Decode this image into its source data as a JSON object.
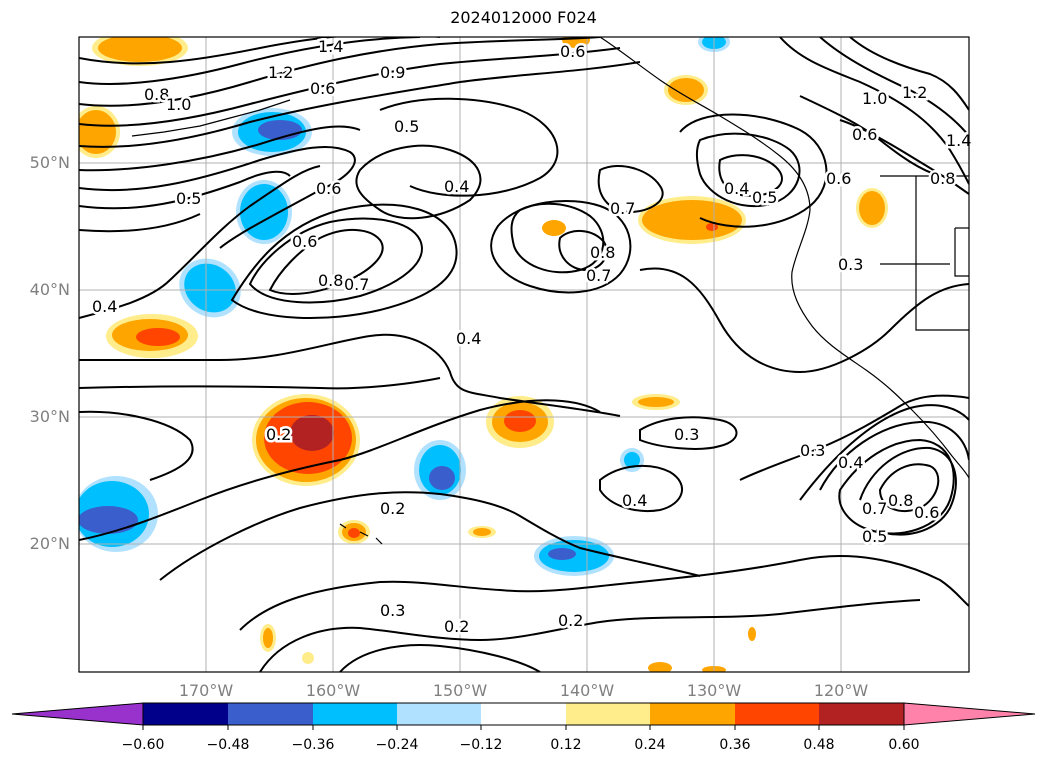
{
  "title": "2024012000 F024",
  "lat_labels": [
    "50°N",
    "40°N",
    "30°N",
    "20°N"
  ],
  "lon_labels": [
    "170°W",
    "160°W",
    "150°W",
    "140°W",
    "130°W",
    "120°W"
  ],
  "contour_labels": [
    "1.2",
    "1.4",
    "0.8",
    "1.0",
    "0.6",
    "0.9",
    "0.6",
    "0.5",
    "0.6",
    "0.5",
    "0.4",
    "0.6",
    "0.8",
    "0.7",
    "0.4",
    "0.4",
    "0.8",
    "0.7",
    "0.7",
    "0.4",
    "0.5",
    "0.6",
    "1.0",
    "1.2",
    "0.6",
    "1.4",
    "0.8",
    "0.3",
    "0.2",
    "0.2",
    "0.3",
    "0.2",
    "0.3",
    "0.2",
    "0.4",
    "0.3",
    "0.4",
    "0.7",
    "0.8",
    "0.6",
    "0.5"
  ],
  "colorbar": {
    "ticks": [
      "−0.60",
      "−0.48",
      "−0.36",
      "−0.24",
      "−0.12",
      "0.12",
      "0.24",
      "0.36",
      "0.48",
      "0.60"
    ],
    "colors": [
      "#9932cc",
      "#00008b",
      "#3a5fcd",
      "#00bfff",
      "#b0e2ff",
      "#ffffff",
      "#ffec8b",
      "#ffa500",
      "#ff4500",
      "#b22222",
      "#ff82ab"
    ]
  },
  "fill_colors": {
    "orange": "#ffa500",
    "yellow": "#ffec8b",
    "red": "#ff4500",
    "darkred": "#b22222",
    "sky": "#00bfff",
    "lightblue": "#b0e2ff",
    "royal": "#3a5fcd"
  }
}
